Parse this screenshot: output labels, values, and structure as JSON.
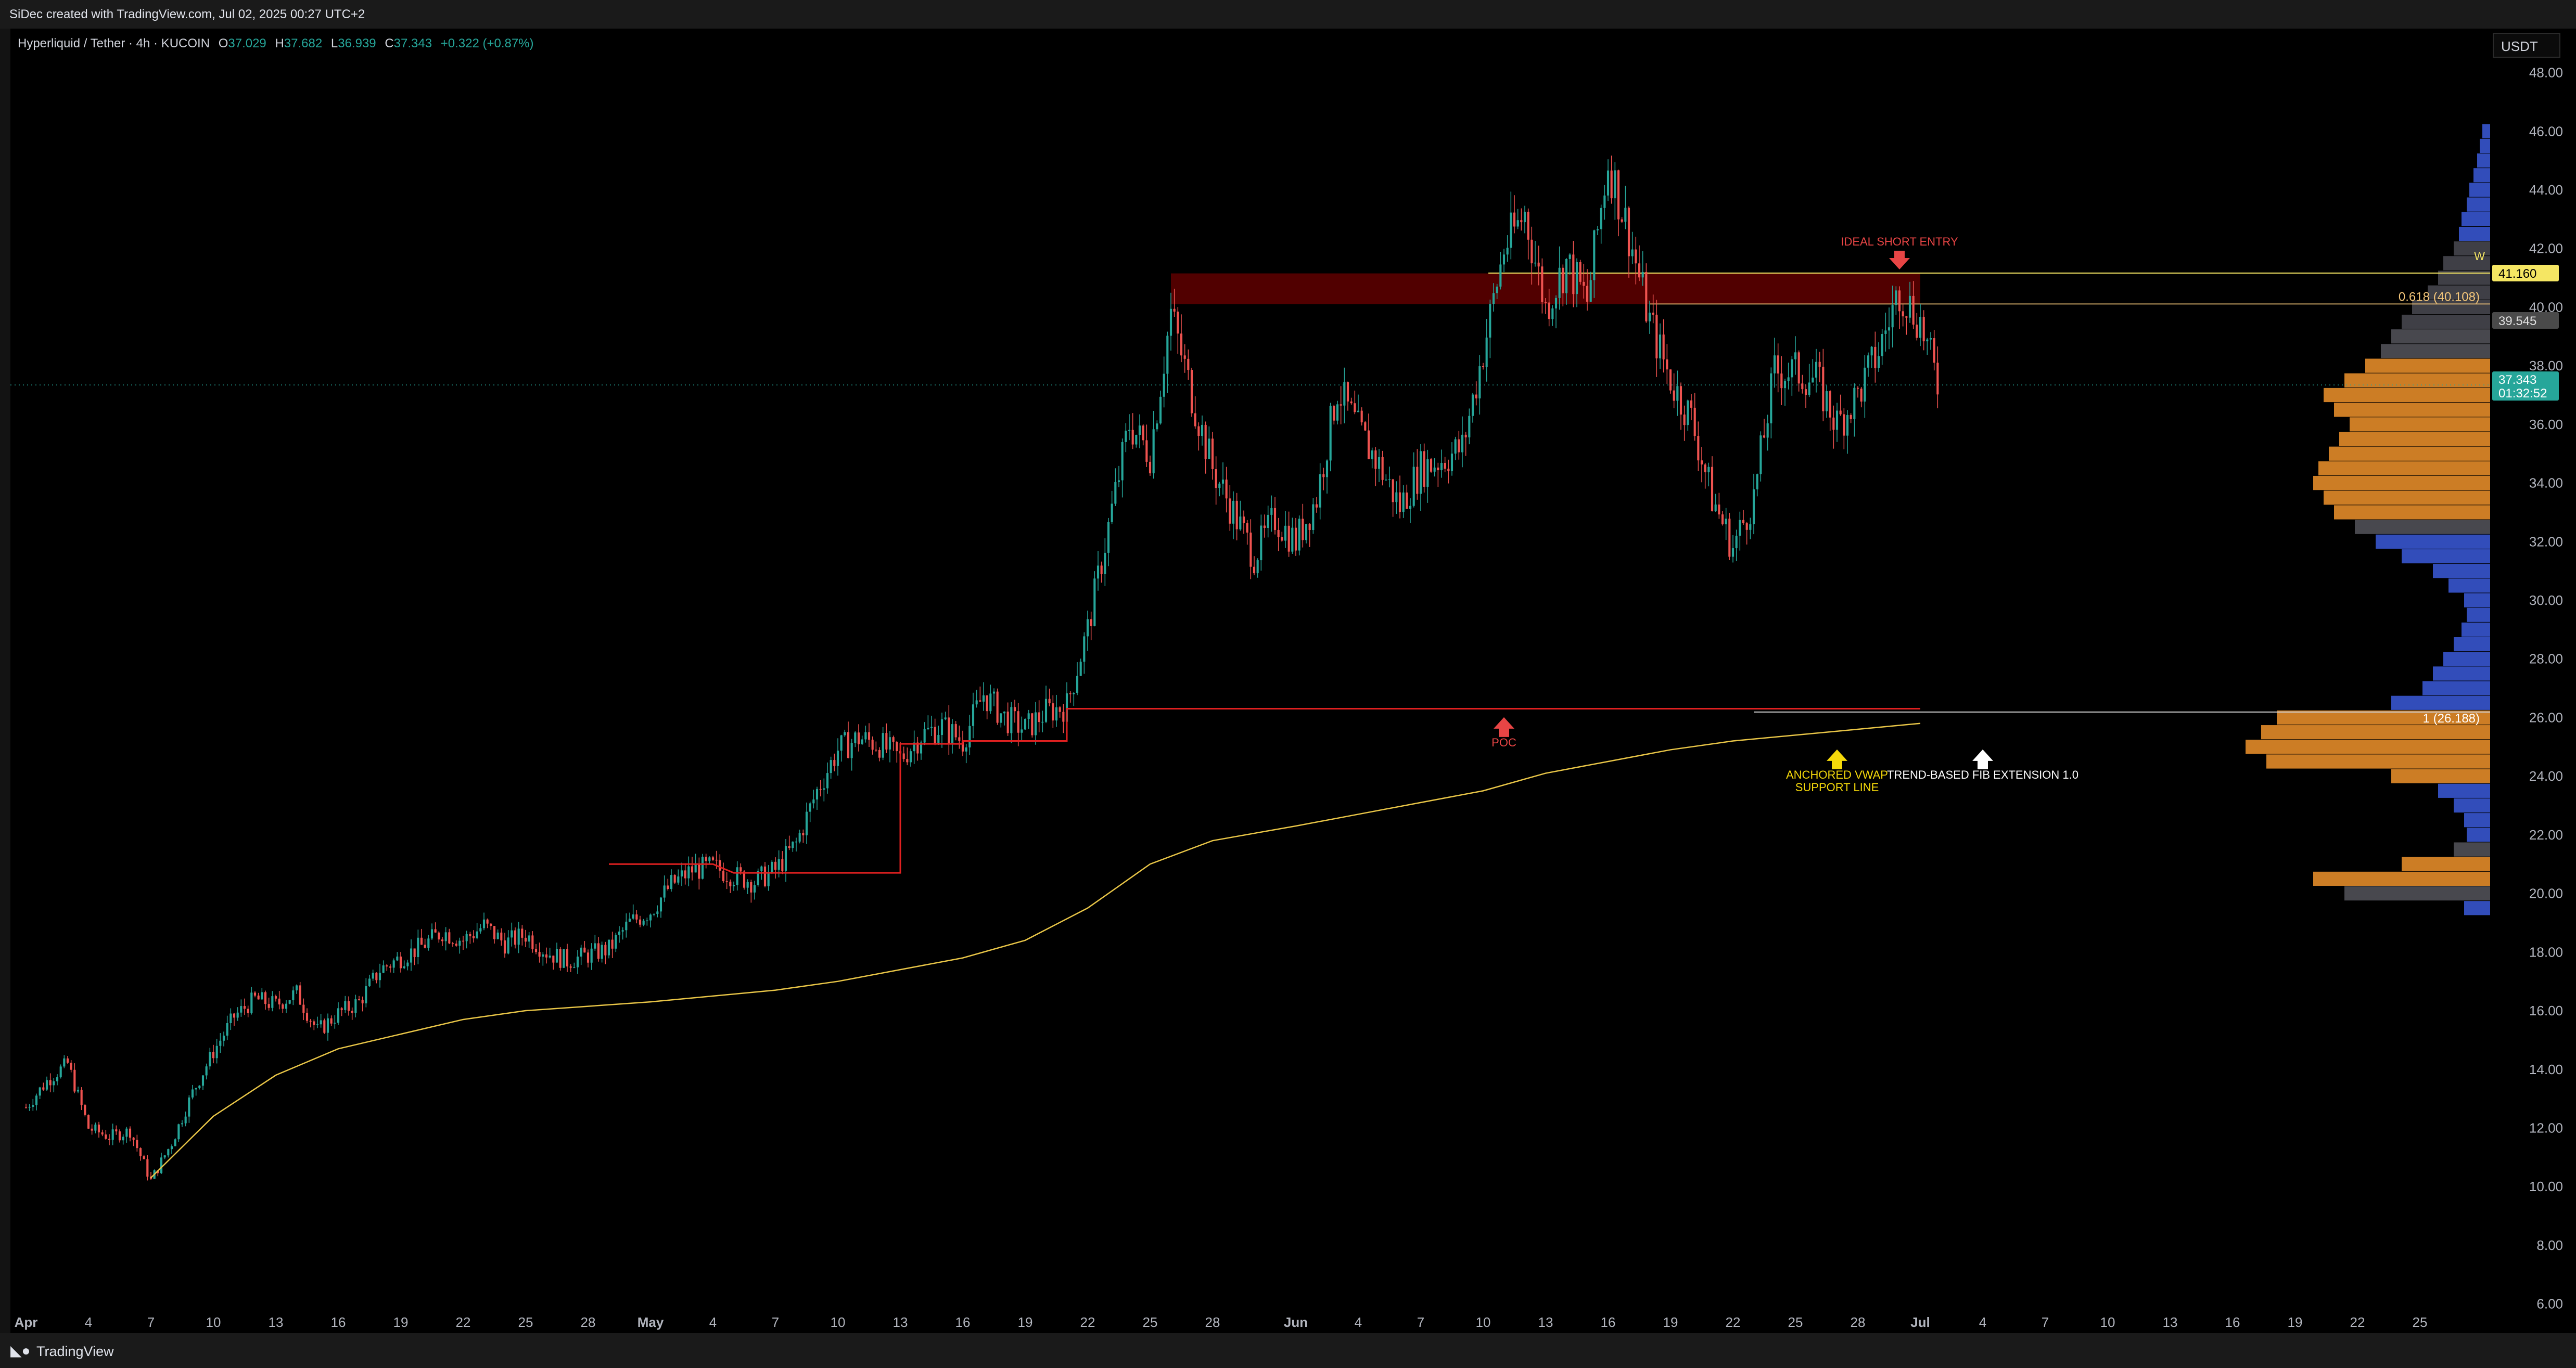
{
  "header": {
    "attribution": "SiDec created with TradingView.com, Jul 02, 2025 00:27 UTC+2"
  },
  "footer": {
    "logo_icon": "tradingview-logo-icon",
    "brand": "TradingView"
  },
  "legend": {
    "symbol": "Hyperliquid / Tether · 4h · KUCOIN",
    "open_label": "O",
    "open": "37.029",
    "high_label": "H",
    "high": "37.682",
    "low_label": "L",
    "low": "36.939",
    "close_label": "C",
    "close": "37.343",
    "change": "+0.322 (+0.87%)"
  },
  "currency": "USDT",
  "colors": {
    "up": "#26a69a",
    "down": "#ef5350",
    "vwap": "#e8c547",
    "poc": "#e02020",
    "zone": "#5a0000"
  },
  "chart_data": {
    "type": "candlestick",
    "title": "",
    "timeframe": "4h",
    "y_range": [
      5.0,
      49.5
    ],
    "y_ticks": [
      6,
      8,
      10,
      12,
      14,
      16,
      18,
      20,
      22,
      24,
      26,
      28,
      30,
      32,
      34,
      36,
      38,
      40,
      42,
      44,
      46,
      48
    ],
    "x_range": [
      "2025-04-01",
      "2025-07-28"
    ],
    "x_ticks": [
      {
        "date": "2025-04-01",
        "label": "Apr"
      },
      {
        "date": "2025-04-04",
        "label": "4"
      },
      {
        "date": "2025-04-07",
        "label": "7"
      },
      {
        "date": "2025-04-10",
        "label": "10"
      },
      {
        "date": "2025-04-13",
        "label": "13"
      },
      {
        "date": "2025-04-16",
        "label": "16"
      },
      {
        "date": "2025-04-19",
        "label": "19"
      },
      {
        "date": "2025-04-22",
        "label": "22"
      },
      {
        "date": "2025-04-25",
        "label": "25"
      },
      {
        "date": "2025-04-28",
        "label": "28"
      },
      {
        "date": "2025-05-01",
        "label": "May"
      },
      {
        "date": "2025-05-04",
        "label": "4"
      },
      {
        "date": "2025-05-07",
        "label": "7"
      },
      {
        "date": "2025-05-10",
        "label": "10"
      },
      {
        "date": "2025-05-13",
        "label": "13"
      },
      {
        "date": "2025-05-16",
        "label": "16"
      },
      {
        "date": "2025-05-19",
        "label": "19"
      },
      {
        "date": "2025-05-22",
        "label": "22"
      },
      {
        "date": "2025-05-25",
        "label": "25"
      },
      {
        "date": "2025-05-28",
        "label": "28"
      },
      {
        "date": "2025-06-01",
        "label": "Jun"
      },
      {
        "date": "2025-06-04",
        "label": "4"
      },
      {
        "date": "2025-06-07",
        "label": "7"
      },
      {
        "date": "2025-06-10",
        "label": "10"
      },
      {
        "date": "2025-06-13",
        "label": "13"
      },
      {
        "date": "2025-06-16",
        "label": "16"
      },
      {
        "date": "2025-06-19",
        "label": "19"
      },
      {
        "date": "2025-06-22",
        "label": "22"
      },
      {
        "date": "2025-06-25",
        "label": "25"
      },
      {
        "date": "2025-06-28",
        "label": "28"
      },
      {
        "date": "2025-07-01",
        "label": "Jul"
      },
      {
        "date": "2025-07-04",
        "label": "4"
      },
      {
        "date": "2025-07-07",
        "label": "7"
      },
      {
        "date": "2025-07-10",
        "label": "10"
      },
      {
        "date": "2025-07-13",
        "label": "13"
      },
      {
        "date": "2025-07-16",
        "label": "16"
      },
      {
        "date": "2025-07-19",
        "label": "19"
      },
      {
        "date": "2025-07-22",
        "label": "22"
      },
      {
        "date": "2025-07-25",
        "label": "25"
      }
    ],
    "price_path": [
      [
        "2025-04-01",
        12.7
      ],
      [
        "2025-04-02",
        13.6
      ],
      [
        "2025-04-03",
        14.2
      ],
      [
        "2025-04-04",
        12.0
      ],
      [
        "2025-04-05",
        11.7
      ],
      [
        "2025-04-06",
        11.9
      ],
      [
        "2025-04-07",
        10.2
      ],
      [
        "2025-04-08",
        11.5
      ],
      [
        "2025-04-09",
        13.2
      ],
      [
        "2025-04-10",
        14.6
      ],
      [
        "2025-04-11",
        15.8
      ],
      [
        "2025-04-12",
        16.4
      ],
      [
        "2025-04-13",
        16.2
      ],
      [
        "2025-04-14",
        16.6
      ],
      [
        "2025-04-15",
        15.3
      ],
      [
        "2025-04-16",
        15.9
      ],
      [
        "2025-04-17",
        16.3
      ],
      [
        "2025-04-18",
        17.4
      ],
      [
        "2025-04-19",
        17.8
      ],
      [
        "2025-04-20",
        18.2
      ],
      [
        "2025-04-21",
        18.7
      ],
      [
        "2025-04-22",
        18.4
      ],
      [
        "2025-04-23",
        18.9
      ],
      [
        "2025-04-24",
        18.3
      ],
      [
        "2025-04-25",
        18.6
      ],
      [
        "2025-04-26",
        18.0
      ],
      [
        "2025-04-27",
        17.7
      ],
      [
        "2025-04-28",
        17.9
      ],
      [
        "2025-04-29",
        18.1
      ],
      [
        "2025-04-30",
        19.0
      ],
      [
        "2025-05-01",
        19.4
      ],
      [
        "2025-05-02",
        20.3
      ],
      [
        "2025-05-03",
        20.8
      ],
      [
        "2025-05-04",
        20.9
      ],
      [
        "2025-05-05",
        20.6
      ],
      [
        "2025-05-06",
        20.4
      ],
      [
        "2025-05-07",
        20.8
      ],
      [
        "2025-05-08",
        21.7
      ],
      [
        "2025-05-09",
        23.5
      ],
      [
        "2025-05-10",
        24.9
      ],
      [
        "2025-05-11",
        25.3
      ],
      [
        "2025-05-12",
        25.1
      ],
      [
        "2025-05-13",
        24.6
      ],
      [
        "2025-05-14",
        25.4
      ],
      [
        "2025-05-15",
        25.7
      ],
      [
        "2025-05-16",
        25.2
      ],
      [
        "2025-05-17",
        26.8
      ],
      [
        "2025-05-18",
        26.0
      ],
      [
        "2025-05-19",
        25.6
      ],
      [
        "2025-05-20",
        26.2
      ],
      [
        "2025-05-21",
        26.4
      ],
      [
        "2025-05-22",
        29.0
      ],
      [
        "2025-05-23",
        32.5
      ],
      [
        "2025-05-24",
        36.0
      ],
      [
        "2025-05-25",
        35.0
      ],
      [
        "2025-05-26",
        39.8
      ],
      [
        "2025-05-27",
        37.0
      ],
      [
        "2025-05-28",
        34.5
      ],
      [
        "2025-05-29",
        33.0
      ],
      [
        "2025-05-30",
        31.5
      ],
      [
        "2025-05-31",
        32.8
      ],
      [
        "2025-06-01",
        32.0
      ],
      [
        "2025-06-02",
        33.5
      ],
      [
        "2025-06-03",
        37.2
      ],
      [
        "2025-06-04",
        35.8
      ],
      [
        "2025-06-05",
        34.6
      ],
      [
        "2025-06-06",
        33.2
      ],
      [
        "2025-06-07",
        34.5
      ],
      [
        "2025-06-08",
        34.8
      ],
      [
        "2025-06-09",
        35.2
      ],
      [
        "2025-06-10",
        38.5
      ],
      [
        "2025-06-11",
        42.0
      ],
      [
        "2025-06-12",
        43.2
      ],
      [
        "2025-06-13",
        40.0
      ],
      [
        "2025-06-14",
        41.5
      ],
      [
        "2025-06-15",
        40.2
      ],
      [
        "2025-06-16",
        45.0
      ],
      [
        "2025-06-17",
        42.5
      ],
      [
        "2025-06-18",
        39.5
      ],
      [
        "2025-06-19",
        37.5
      ],
      [
        "2025-06-20",
        36.2
      ],
      [
        "2025-06-21",
        33.5
      ],
      [
        "2025-06-22",
        31.8
      ],
      [
        "2025-06-23",
        33.5
      ],
      [
        "2025-06-24",
        37.8
      ],
      [
        "2025-06-25",
        37.8
      ],
      [
        "2025-06-26",
        37.5
      ],
      [
        "2025-06-27",
        36.0
      ],
      [
        "2025-06-28",
        37.0
      ],
      [
        "2025-06-29",
        38.5
      ],
      [
        "2025-06-30",
        40.6
      ],
      [
        "2025-07-01",
        39.5
      ],
      [
        "2025-07-01T20:00",
        37.34
      ]
    ],
    "vwap": [
      [
        "2025-04-07",
        10.3
      ],
      [
        "2025-04-10",
        12.4
      ],
      [
        "2025-04-13",
        13.8
      ],
      [
        "2025-04-16",
        14.7
      ],
      [
        "2025-04-19",
        15.2
      ],
      [
        "2025-04-22",
        15.7
      ],
      [
        "2025-04-25",
        16.0
      ],
      [
        "2025-04-28",
        16.15
      ],
      [
        "2025-05-01",
        16.3
      ],
      [
        "2025-05-04",
        16.5
      ],
      [
        "2025-05-07",
        16.7
      ],
      [
        "2025-05-10",
        17.0
      ],
      [
        "2025-05-13",
        17.4
      ],
      [
        "2025-05-16",
        17.8
      ],
      [
        "2025-05-19",
        18.4
      ],
      [
        "2025-05-22",
        19.5
      ],
      [
        "2025-05-25",
        21.0
      ],
      [
        "2025-05-28",
        21.8
      ],
      [
        "2025-06-01",
        22.3
      ],
      [
        "2025-06-04",
        22.7
      ],
      [
        "2025-06-07",
        23.1
      ],
      [
        "2025-06-10",
        23.5
      ],
      [
        "2025-06-13",
        24.1
      ],
      [
        "2025-06-16",
        24.5
      ],
      [
        "2025-06-19",
        24.9
      ],
      [
        "2025-06-22",
        25.2
      ],
      [
        "2025-06-25",
        25.4
      ],
      [
        "2025-06-28",
        25.6
      ],
      [
        "2025-07-01",
        25.8
      ]
    ],
    "poc_line": [
      [
        "2025-04-29",
        21.0
      ],
      [
        "2025-05-04",
        21.0
      ],
      [
        "2025-05-05",
        20.7
      ],
      [
        "2025-05-13",
        20.7
      ],
      [
        "2025-05-13",
        25.1
      ],
      [
        "2025-05-16",
        25.1
      ],
      [
        "2025-05-16",
        25.2
      ],
      [
        "2025-05-21",
        25.2
      ],
      [
        "2025-05-21",
        26.3
      ],
      [
        "2025-07-01",
        26.3
      ]
    ],
    "resistance_zone": {
      "from": "2025-05-26",
      "to": "2025-07-01",
      "low": 40.1,
      "high": 41.15
    },
    "horizontal_levels": [
      {
        "value": 41.16,
        "label": "41.160",
        "kind": "yellow"
      },
      {
        "value": 40.108,
        "label": "0.618 (40.108)",
        "kind": "fib"
      },
      {
        "value": 26.188,
        "label": "1 (26.188)",
        "kind": "fib"
      }
    ],
    "price_labels": [
      {
        "value": 41.16,
        "text": "41.160",
        "kind": "yellow"
      },
      {
        "value": 39.545,
        "text": "39.545",
        "kind": "grey"
      },
      {
        "value": 37.343,
        "text": "37.343",
        "countdown": "01:32:52",
        "kind": "last"
      }
    ],
    "w_label": "W",
    "annotations": [
      {
        "id": "short",
        "text": "IDEAL SHORT ENTRY",
        "date": "2025-06-30",
        "y": 42.1,
        "color": "#e84545",
        "arrow": "down"
      },
      {
        "id": "poc",
        "text": "POC",
        "date": "2025-06-11",
        "y": 25.3,
        "color": "#e84545",
        "arrow": "up"
      },
      {
        "id": "vwap",
        "lines": [
          "ANCHORED VWAP",
          "SUPPORT LINE"
        ],
        "date": "2025-06-27",
        "y": 24.2,
        "color": "#f5d90a",
        "arrow": "up"
      },
      {
        "id": "fib",
        "text": "TREND-BASED FIB EXTENSION 1.0",
        "date": "2025-07-04",
        "y": 24.2,
        "color": "#ffffff",
        "arrow": "up"
      }
    ],
    "volume_profile": [
      [
        48.0,
        0
      ],
      [
        47.5,
        0
      ],
      [
        47.0,
        0
      ],
      [
        46.5,
        0
      ],
      [
        46.0,
        15
      ],
      [
        45.5,
        20
      ],
      [
        45.0,
        25
      ],
      [
        44.5,
        32
      ],
      [
        44.0,
        40
      ],
      [
        43.5,
        45
      ],
      [
        43.0,
        55
      ],
      [
        42.5,
        60
      ],
      [
        42.0,
        70
      ],
      [
        41.5,
        90
      ],
      [
        41.0,
        100
      ],
      [
        40.5,
        120
      ],
      [
        40.0,
        150
      ],
      [
        39.5,
        170
      ],
      [
        39.0,
        190
      ],
      [
        38.5,
        210
      ],
      [
        38.0,
        240
      ],
      [
        37.5,
        280
      ],
      [
        37.0,
        320
      ],
      [
        36.5,
        300
      ],
      [
        36.0,
        270
      ],
      [
        35.5,
        290
      ],
      [
        35.0,
        310
      ],
      [
        34.5,
        330
      ],
      [
        34.0,
        340
      ],
      [
        33.5,
        320
      ],
      [
        33.0,
        300
      ],
      [
        32.5,
        260
      ],
      [
        32.0,
        220
      ],
      [
        31.5,
        170
      ],
      [
        31.0,
        110
      ],
      [
        30.5,
        80
      ],
      [
        30.0,
        50
      ],
      [
        29.5,
        45
      ],
      [
        29.0,
        55
      ],
      [
        28.5,
        70
      ],
      [
        28.0,
        90
      ],
      [
        27.5,
        110
      ],
      [
        27.0,
        130
      ],
      [
        26.5,
        190
      ],
      [
        26.0,
        410
      ],
      [
        25.5,
        440
      ],
      [
        25.0,
        470
      ],
      [
        24.5,
        430
      ],
      [
        24.0,
        190
      ],
      [
        23.5,
        100
      ],
      [
        23.0,
        70
      ],
      [
        22.5,
        50
      ],
      [
        22.0,
        45
      ],
      [
        21.5,
        70
      ],
      [
        21.0,
        170
      ],
      [
        20.5,
        340
      ],
      [
        20.0,
        280
      ],
      [
        19.5,
        50
      ]
    ]
  }
}
